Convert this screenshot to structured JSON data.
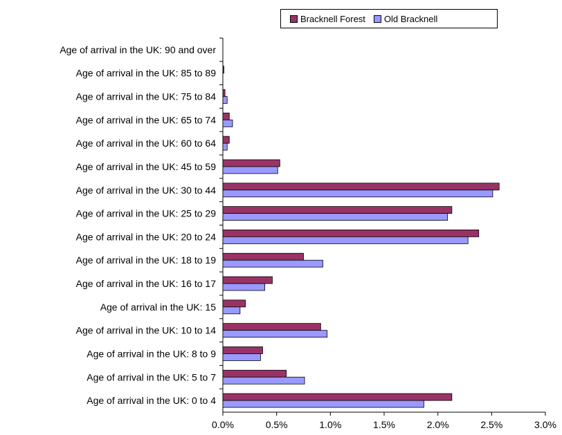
{
  "chart_data": {
    "type": "bar",
    "orientation": "horizontal",
    "categories": [
      "Age of arrival in the UK: 0 to 4",
      "Age of arrival in the UK: 5 to 7",
      "Age of arrival in the UK: 8 to 9",
      "Age of arrival in the UK: 10 to 14",
      "Age of arrival in the UK: 15",
      "Age of arrival in the UK: 16 to 17",
      "Age of arrival in the UK: 18 to 19",
      "Age of arrival in the UK: 20 to 24",
      "Age of arrival in the UK: 25 to 29",
      "Age of arrival in the UK: 30 to 44",
      "Age of arrival in the UK: 45 to 59",
      "Age of arrival in the UK: 60 to 64",
      "Age of arrival in the UK: 65 to 74",
      "Age of arrival in the UK: 75 to 84",
      "Age of arrival in the UK: 85 to 89",
      "Age of arrival in the UK: 90 and over"
    ],
    "series": [
      {
        "name": "Bracknell Forest",
        "color": "#993366",
        "values": [
          2.13,
          0.59,
          0.37,
          0.91,
          0.21,
          0.46,
          0.75,
          2.38,
          2.13,
          2.57,
          0.53,
          0.06,
          0.06,
          0.02,
          0.01,
          0.0
        ]
      },
      {
        "name": "Old Bracknell",
        "color": "#9999ff",
        "values": [
          1.87,
          0.76,
          0.35,
          0.97,
          0.16,
          0.39,
          0.93,
          2.28,
          2.09,
          2.51,
          0.51,
          0.04,
          0.09,
          0.04,
          0.0,
          0.0
        ]
      }
    ],
    "xlim": [
      0,
      3.0
    ],
    "xticks": [
      "0.0%",
      "0.5%",
      "1.0%",
      "1.5%",
      "2.0%",
      "2.5%",
      "3.0%"
    ],
    "xtick_values": [
      0,
      0.5,
      1.0,
      1.5,
      2.0,
      2.5,
      3.0
    ],
    "legend_position": "top-right",
    "grid": false,
    "title": "",
    "xlabel": "",
    "ylabel": ""
  }
}
